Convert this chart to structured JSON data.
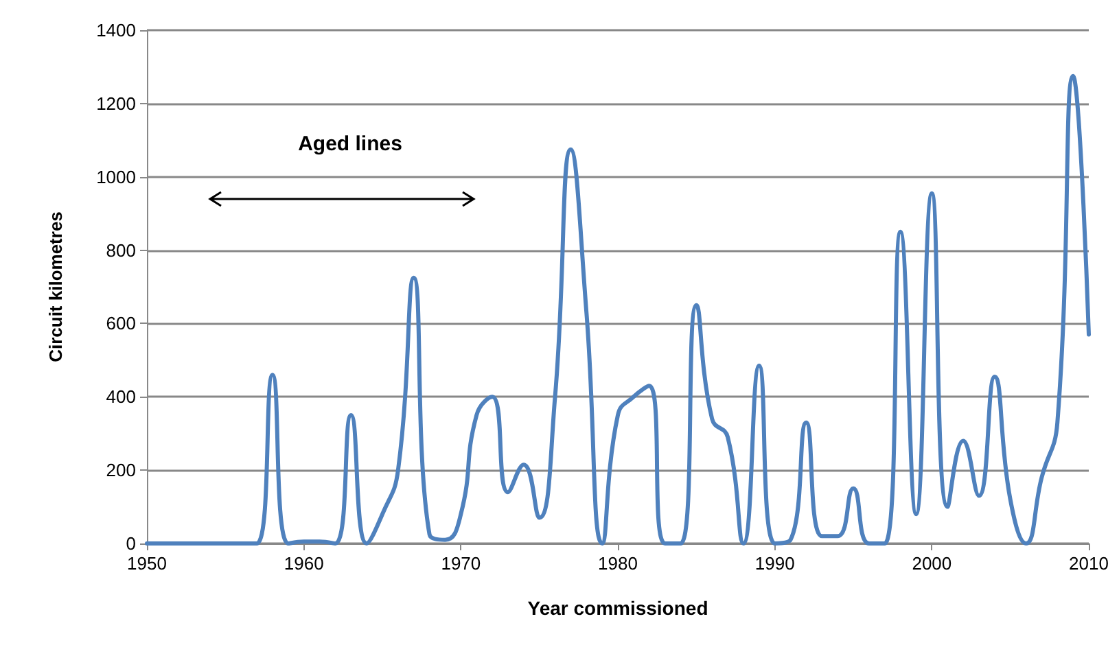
{
  "chart_data": {
    "type": "line",
    "xlabel": "Year commissioned",
    "ylabel": "Circuit kilometres",
    "x": [
      1950,
      1951,
      1952,
      1953,
      1954,
      1955,
      1956,
      1957,
      1958,
      1959,
      1960,
      1961,
      1962,
      1963,
      1964,
      1965,
      1966,
      1967,
      1968,
      1969,
      1970,
      1971,
      1972,
      1973,
      1974,
      1975,
      1976,
      1977,
      1978,
      1979,
      1980,
      1981,
      1982,
      1983,
      1984,
      1985,
      1986,
      1987,
      1988,
      1989,
      1990,
      1991,
      1992,
      1993,
      1994,
      1995,
      1996,
      1997,
      1998,
      1999,
      2000,
      2001,
      2002,
      2003,
      2004,
      2005,
      2006,
      2007,
      2008,
      2009,
      2010
    ],
    "series": [
      {
        "color": "#4f81bd",
        "values": [
          0,
          0,
          0,
          0,
          0,
          0,
          0,
          0,
          460,
          0,
          5,
          5,
          0,
          350,
          0,
          80,
          200,
          725,
          25,
          10,
          80,
          350,
          400,
          140,
          215,
          70,
          400,
          1075,
          630,
          0,
          350,
          400,
          430,
          0,
          0,
          650,
          340,
          290,
          0,
          485,
          0,
          10,
          330,
          20,
          20,
          150,
          0,
          0,
          850,
          80,
          955,
          100,
          280,
          130,
          455,
          120,
          0,
          180,
          330,
          1275,
          570
        ]
      }
    ],
    "xlim": [
      1950,
      2010
    ],
    "xticks": [
      1950,
      1960,
      1970,
      1980,
      1990,
      2000,
      2010
    ],
    "ylim": [
      0,
      1400
    ],
    "yticks": [
      0,
      200,
      400,
      600,
      800,
      1000,
      1200,
      1400
    ],
    "grid": "y",
    "marker": "none",
    "line_style": "solid",
    "annotations": [
      "Aged lines"
    ]
  }
}
